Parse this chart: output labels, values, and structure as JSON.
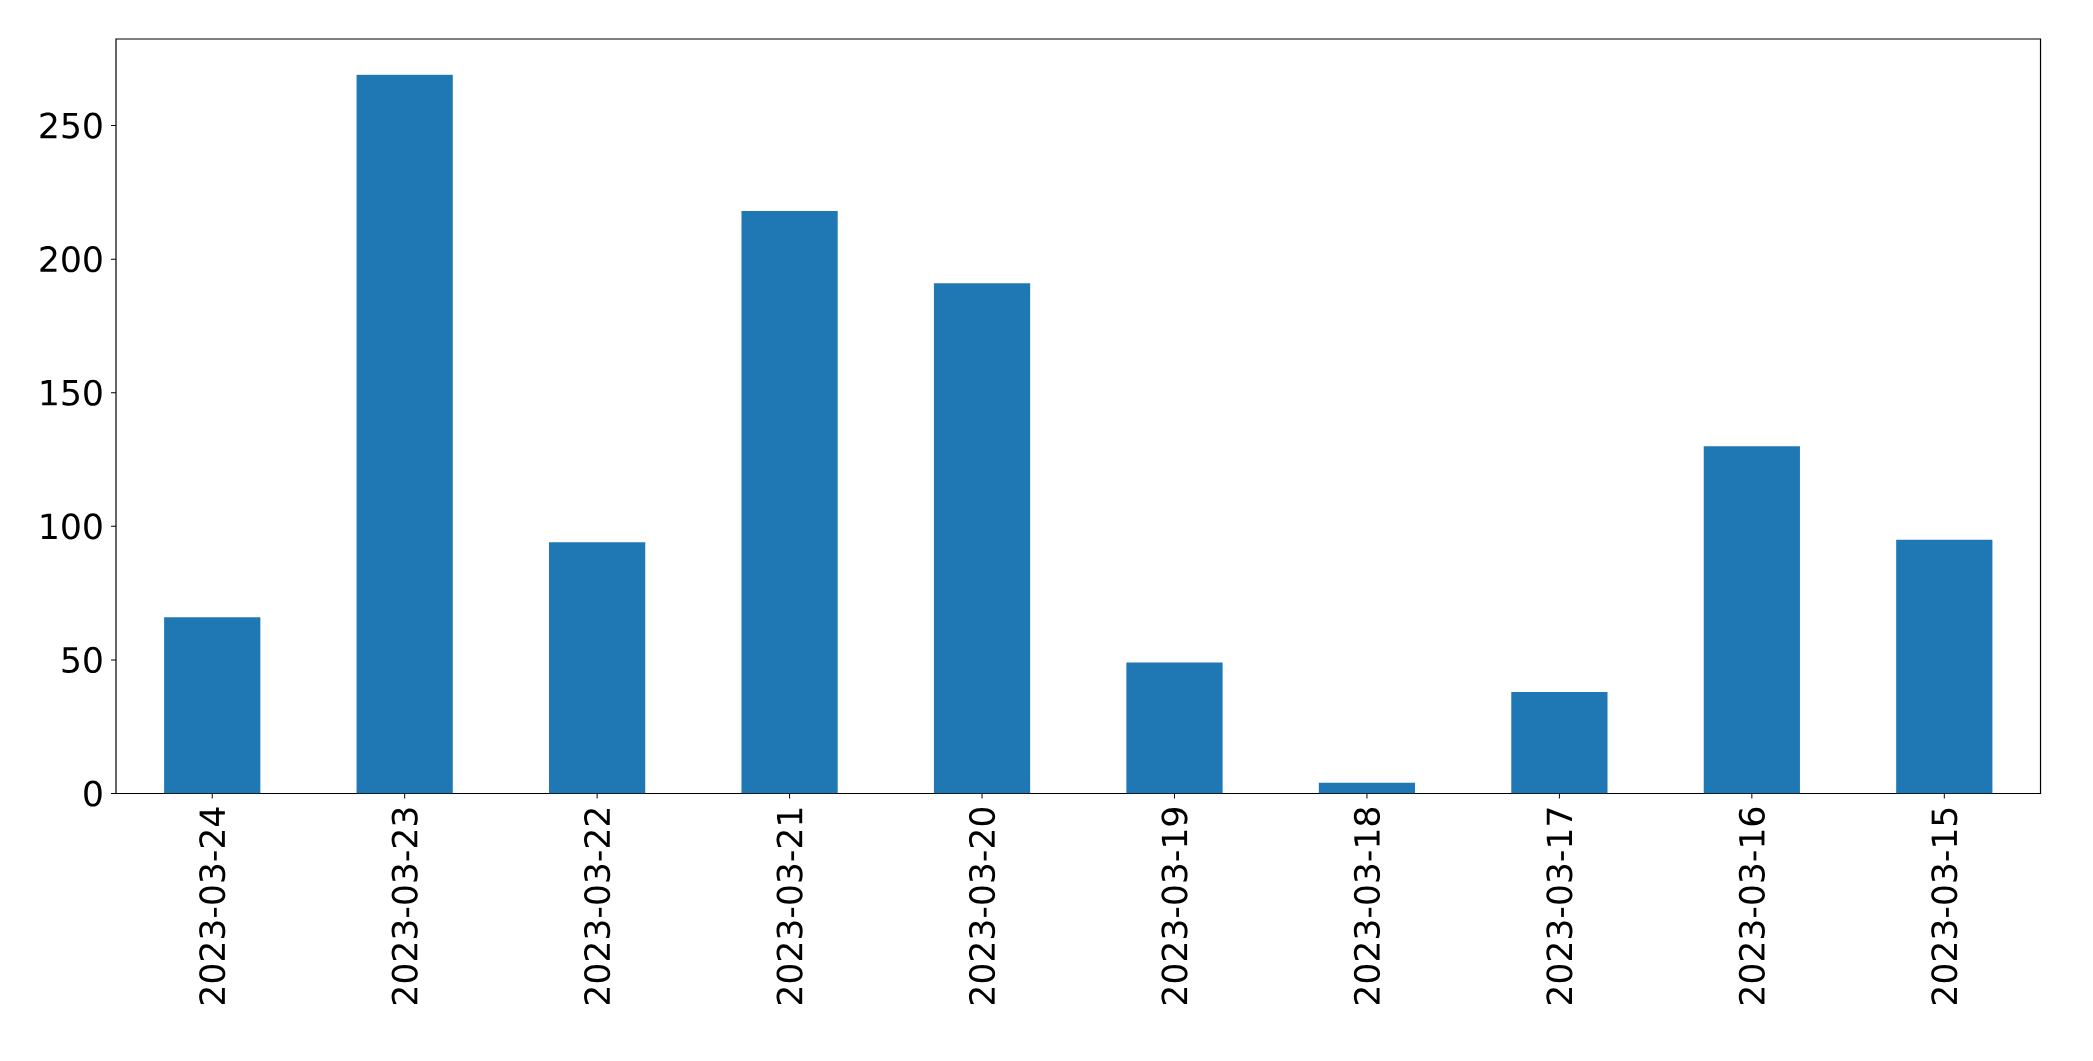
{
  "chart_data": {
    "type": "bar",
    "categories": [
      "2023-03-24",
      "2023-03-23",
      "2023-03-22",
      "2023-03-21",
      "2023-03-20",
      "2023-03-19",
      "2023-03-18",
      "2023-03-17",
      "2023-03-16",
      "2023-03-15"
    ],
    "values": [
      66,
      269,
      94,
      218,
      191,
      49,
      4,
      38,
      130,
      95
    ],
    "color": "#1f77b4",
    "ylim": [
      0,
      282.4
    ],
    "yticks": [
      0,
      50,
      100,
      150,
      200,
      250
    ]
  }
}
